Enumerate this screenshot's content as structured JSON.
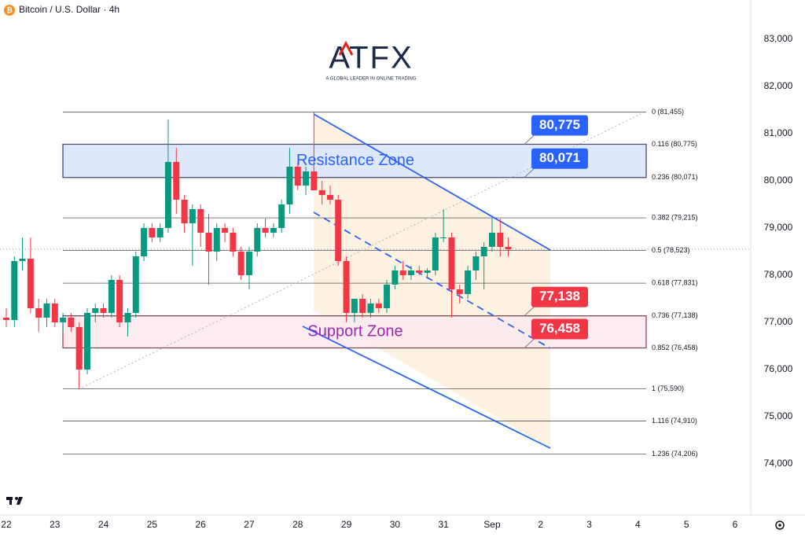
{
  "brand": {
    "name": "ATFX",
    "tagline": "A GLOBAL LEADER IN ONLINE TRADING"
  },
  "chart_data": {
    "type": "candlestick",
    "title": "Bitcoin / U.S. Dollar · 4h",
    "x": [
      22,
      22.167,
      22.333,
      22.5,
      22.667,
      22.833,
      23,
      23.167,
      23.333,
      23.5,
      23.667,
      23.833,
      24,
      24.167,
      24.333,
      24.5,
      24.667,
      24.833,
      25,
      25.167,
      25.333,
      25.5,
      25.667,
      25.833,
      26,
      26.167,
      26.333,
      26.5,
      26.667,
      26.833,
      27,
      27.167,
      27.333,
      27.5,
      27.667,
      27.833,
      28,
      28.167,
      28.333,
      28.5,
      28.667,
      28.833,
      29,
      29.167,
      29.333,
      29.5,
      29.667,
      29.833,
      30,
      30.167,
      30.333,
      30.5,
      30.667,
      30.833,
      31,
      31.167,
      31.333,
      31.5,
      31.667,
      31.833,
      32,
      32.167,
      32.333
    ],
    "open": [
      77100,
      77050,
      78300,
      78350,
      77300,
      77100,
      77400,
      77000,
      77100,
      76900,
      76000,
      77200,
      77300,
      77200,
      77900,
      77000,
      77200,
      78400,
      79000,
      78800,
      79000,
      80400,
      79600,
      79100,
      79400,
      78900,
      78500,
      79000,
      78900,
      78500,
      78000,
      78500,
      79000,
      78900,
      79000,
      79500,
      80300,
      79900,
      80200,
      79800,
      79700,
      79600,
      78300,
      77200,
      77500,
      77200,
      77400,
      77300,
      77800,
      78100,
      78000,
      78100,
      78050,
      78100,
      78800,
      78800,
      77700,
      77600,
      78100,
      78400,
      78600,
      78900,
      78600
    ],
    "high": [
      77300,
      78400,
      78800,
      78800,
      77500,
      77500,
      77500,
      77200,
      77200,
      77000,
      77300,
      77400,
      77400,
      78000,
      78000,
      77300,
      78500,
      79100,
      79100,
      79100,
      81300,
      80700,
      79700,
      79500,
      79500,
      79300,
      79100,
      79100,
      79000,
      78600,
      78600,
      79100,
      79200,
      79100,
      79600,
      80700,
      80400,
      80300,
      81455,
      80000,
      79900,
      79700,
      78400,
      77500,
      77600,
      77500,
      77500,
      77900,
      78200,
      78300,
      78200,
      78200,
      78150,
      78900,
      79400,
      78900,
      77800,
      78200,
      78500,
      78700,
      79200,
      79200,
      78800
    ],
    "low": [
      76900,
      76900,
      78100,
      77200,
      76800,
      76900,
      76900,
      76800,
      76800,
      75590,
      75900,
      77000,
      77100,
      77100,
      76900,
      76700,
      77100,
      78300,
      78700,
      78700,
      78900,
      79300,
      78900,
      78200,
      78600,
      77800,
      78300,
      78700,
      78400,
      77900,
      77700,
      78400,
      78800,
      78800,
      78900,
      79300,
      79800,
      79700,
      79800,
      79500,
      79500,
      78200,
      77000,
      77000,
      77100,
      77100,
      77200,
      77200,
      77700,
      77900,
      77900,
      78000,
      77950,
      78000,
      78700,
      77100,
      77400,
      77500,
      77900,
      77700,
      78500,
      78400,
      78400
    ],
    "close": [
      77050,
      78300,
      78350,
      77300,
      77100,
      77400,
      77000,
      77100,
      76900,
      76000,
      77200,
      77300,
      77200,
      77900,
      77000,
      77200,
      78400,
      79000,
      78800,
      79000,
      80400,
      79600,
      79100,
      79400,
      78900,
      78500,
      79000,
      78900,
      78500,
      78000,
      78500,
      79000,
      78900,
      79000,
      79500,
      80300,
      79900,
      80200,
      79800,
      79700,
      79600,
      78300,
      77200,
      77500,
      77200,
      77400,
      77300,
      77800,
      78100,
      78000,
      78100,
      78050,
      78100,
      78800,
      78800,
      77700,
      77600,
      78100,
      78400,
      78600,
      78900,
      78600,
      78550
    ],
    "up_color": "#089981",
    "down_color": "#f23645",
    "xlim": [
      21.871,
      37.324
    ],
    "xticks": [
      22,
      23,
      24,
      25,
      26,
      27,
      28,
      29,
      30,
      31,
      {
        "value": 32,
        "label": "Sep"
      },
      {
        "value": 33,
        "label": "2"
      },
      {
        "value": 34,
        "label": "3"
      },
      {
        "value": 35,
        "label": "4"
      },
      {
        "value": 36,
        "label": "5"
      },
      {
        "value": 37,
        "label": "6"
      }
    ],
    "ylim": [
      72917,
      83833
    ],
    "yticks": [
      {
        "value": 74000,
        "label": "74,000"
      },
      {
        "value": 75000,
        "label": "75,000"
      },
      {
        "value": 76000,
        "label": "76,000"
      },
      {
        "value": 77000,
        "label": "77,000"
      },
      {
        "value": 78000,
        "label": "78,000"
      },
      {
        "value": 79000,
        "label": "79,000"
      },
      {
        "value": 80000,
        "label": "80,000"
      },
      {
        "value": 81000,
        "label": "81,000"
      },
      {
        "value": 82000,
        "label": "82,000"
      },
      {
        "value": 83000,
        "label": "83,000"
      }
    ],
    "fib_levels": [
      {
        "value": 81455,
        "label": "0 (81,455)"
      },
      {
        "value": 80775,
        "label": "0.116 (80,775)"
      },
      {
        "value": 80071,
        "label": "0.236 (80,071)"
      },
      {
        "value": 79215,
        "label": "0.382 (79,215)"
      },
      {
        "value": 78523,
        "label": "0.5 (78,523)"
      },
      {
        "value": 77831,
        "label": "0.618 (77,831)"
      },
      {
        "value": 77138,
        "label": "0.736 (77,138)"
      },
      {
        "value": 76458,
        "label": "0.852 (76,458)"
      },
      {
        "value": 75590,
        "label": "1 (75,590)"
      },
      {
        "value": 74910,
        "label": "1.116 (74,910)"
      },
      {
        "value": 74206,
        "label": "1.236 (74,206)"
      }
    ],
    "zones": [
      {
        "label": "Resistance Zone",
        "from": 80071,
        "to": 80775,
        "fill": "#dbe6fb",
        "stroke": "#1a237e",
        "text_color": "#2962ff"
      },
      {
        "label": "Support Zone",
        "from": 76458,
        "to": 77138,
        "fill": "#fcebee",
        "stroke": "#9c1c3a",
        "text_color": "#9c27b0"
      }
    ],
    "price_labels": [
      {
        "value": 80775,
        "label": "80,775",
        "color": "#2962ff"
      },
      {
        "value": 80071,
        "label": "80,071",
        "color": "#2962ff"
      },
      {
        "value": 77138,
        "label": "77,138",
        "color": "#f23645"
      },
      {
        "value": 76458,
        "label": "76,458",
        "color": "#f23645"
      }
    ]
  }
}
